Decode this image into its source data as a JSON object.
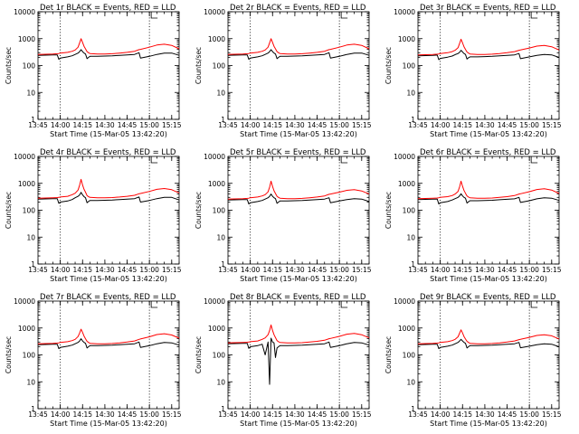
{
  "page": {
    "background": "#ffffff"
  },
  "chart_data": {
    "type": "line",
    "layout": "3x3",
    "y_scale": "log",
    "ylim": [
      1,
      10000
    ],
    "xlim": [
      "13:45",
      "15:20"
    ],
    "ylabel": "Counts/sec",
    "xlabel": "Start Time (15-Mar-05 13:42:20)",
    "x_tick_labels": [
      "13:45",
      "14:00",
      "14:15",
      "14:30",
      "14:45",
      "15:00",
      "15:15"
    ],
    "y_tick_labels": [
      "1",
      "10",
      "100",
      "1000",
      "10000"
    ],
    "vertical_markers": [
      "14:00",
      "15:00"
    ],
    "time_points": [
      "13:45",
      "13:55",
      "13:58",
      "13:59",
      "14:00",
      "14:05",
      "14:08",
      "14:10",
      "14:12",
      "14:13",
      "14:14",
      "14:15",
      "14:16",
      "14:17",
      "14:18",
      "14:19",
      "14:20",
      "14:25",
      "14:30",
      "14:35",
      "14:40",
      "14:45",
      "14:50",
      "14:53",
      "14:54",
      "15:00",
      "15:05",
      "15:10",
      "15:15",
      "15:20"
    ],
    "series": [
      {
        "key": "events",
        "color": "#000000"
      },
      {
        "key": "lld",
        "color": "#ff0000"
      }
    ],
    "panels": [
      {
        "title": "Det 1r BLACK = Events, RED = LLD",
        "events": [
          240,
          250,
          250,
          170,
          190,
          210,
          230,
          260,
          290,
          330,
          390,
          330,
          290,
          270,
          180,
          200,
          220,
          220,
          225,
          230,
          240,
          250,
          260,
          300,
          190,
          220,
          260,
          290,
          290,
          240
        ],
        "lld": [
          260,
          270,
          275,
          280,
          290,
          310,
          340,
          380,
          480,
          700,
          1000,
          720,
          520,
          420,
          330,
          300,
          280,
          270,
          270,
          275,
          290,
          310,
          340,
          390,
          400,
          480,
          580,
          620,
          560,
          420
        ]
      },
      {
        "title": "Det 2r BLACK = Events, RED = LLD",
        "events": [
          240,
          250,
          250,
          170,
          190,
          210,
          230,
          260,
          290,
          330,
          390,
          330,
          290,
          270,
          180,
          200,
          220,
          220,
          225,
          230,
          240,
          250,
          260,
          300,
          190,
          220,
          260,
          290,
          290,
          240
        ],
        "lld": [
          260,
          270,
          275,
          280,
          290,
          310,
          340,
          380,
          480,
          700,
          1000,
          720,
          520,
          420,
          330,
          300,
          280,
          270,
          270,
          275,
          290,
          310,
          340,
          390,
          400,
          480,
          580,
          620,
          560,
          420
        ]
      },
      {
        "title": "Det 3r BLACK = Events, RED = LLD",
        "events": [
          230,
          240,
          245,
          165,
          185,
          205,
          225,
          255,
          280,
          310,
          370,
          320,
          280,
          260,
          175,
          195,
          210,
          210,
          215,
          220,
          230,
          240,
          250,
          280,
          180,
          210,
          240,
          260,
          250,
          200
        ],
        "lld": [
          250,
          260,
          265,
          270,
          280,
          300,
          330,
          370,
          460,
          660,
          950,
          690,
          500,
          400,
          320,
          290,
          270,
          260,
          260,
          265,
          280,
          300,
          330,
          370,
          380,
          450,
          530,
          560,
          500,
          380
        ]
      },
      {
        "title": "Det 4r BLACK = Events, RED = LLD",
        "events": [
          260,
          270,
          270,
          180,
          200,
          220,
          250,
          290,
          330,
          370,
          460,
          370,
          320,
          290,
          190,
          210,
          230,
          230,
          235,
          240,
          250,
          260,
          270,
          310,
          200,
          230,
          270,
          300,
          300,
          240
        ],
        "lld": [
          280,
          290,
          295,
          300,
          310,
          330,
          380,
          430,
          560,
          850,
          1400,
          860,
          600,
          470,
          350,
          320,
          300,
          290,
          290,
          295,
          310,
          330,
          360,
          410,
          420,
          500,
          600,
          640,
          580,
          440
        ]
      },
      {
        "title": "Det 5r BLACK = Events, RED = LLD",
        "events": [
          240,
          250,
          250,
          170,
          190,
          210,
          230,
          260,
          290,
          330,
          400,
          330,
          290,
          270,
          180,
          200,
          220,
          220,
          225,
          230,
          240,
          250,
          260,
          290,
          190,
          220,
          250,
          270,
          260,
          210
        ],
        "lld": [
          260,
          270,
          275,
          280,
          290,
          310,
          340,
          380,
          480,
          720,
          1200,
          760,
          530,
          420,
          330,
          300,
          280,
          270,
          270,
          275,
          290,
          310,
          340,
          390,
          400,
          470,
          550,
          580,
          520,
          400
        ]
      },
      {
        "title": "Det 6r BLACK = Events, RED = LLD",
        "events": [
          250,
          260,
          260,
          170,
          190,
          210,
          240,
          270,
          300,
          340,
          410,
          340,
          300,
          280,
          185,
          205,
          225,
          225,
          230,
          235,
          245,
          255,
          265,
          300,
          195,
          225,
          265,
          290,
          280,
          230
        ],
        "lld": [
          270,
          280,
          285,
          290,
          300,
          320,
          350,
          400,
          500,
          740,
          1200,
          770,
          540,
          430,
          340,
          310,
          290,
          280,
          280,
          285,
          300,
          320,
          350,
          400,
          410,
          490,
          590,
          630,
          560,
          420
        ]
      },
      {
        "title": "Det 7r BLACK = Events, RED = LLD",
        "events": [
          240,
          250,
          250,
          170,
          190,
          210,
          230,
          260,
          290,
          330,
          400,
          330,
          290,
          270,
          180,
          200,
          220,
          220,
          225,
          230,
          240,
          250,
          260,
          300,
          190,
          220,
          260,
          290,
          280,
          230
        ],
        "lld": [
          260,
          270,
          275,
          280,
          290,
          310,
          340,
          380,
          480,
          650,
          900,
          680,
          500,
          400,
          320,
          290,
          270,
          260,
          260,
          265,
          280,
          300,
          330,
          380,
          390,
          470,
          570,
          610,
          550,
          420
        ]
      },
      {
        "title": "Det 8r BLACK = Events, RED = LLD",
        "events": [
          260,
          270,
          270,
          175,
          200,
          220,
          250,
          100,
          300,
          8,
          420,
          300,
          280,
          80,
          180,
          200,
          220,
          220,
          225,
          230,
          240,
          250,
          260,
          300,
          190,
          220,
          260,
          290,
          280,
          230
        ],
        "lld": [
          280,
          290,
          295,
          300,
          310,
          330,
          380,
          430,
          560,
          800,
          1300,
          800,
          560,
          440,
          340,
          310,
          290,
          280,
          280,
          285,
          300,
          320,
          350,
          400,
          410,
          490,
          590,
          630,
          560,
          430
        ]
      },
      {
        "title": "Det 9r BLACK = Events, RED = LLD",
        "events": [
          240,
          250,
          250,
          170,
          190,
          210,
          230,
          260,
          290,
          330,
          380,
          330,
          290,
          270,
          180,
          200,
          220,
          220,
          225,
          230,
          240,
          250,
          260,
          290,
          185,
          210,
          240,
          260,
          250,
          200
        ],
        "lld": [
          260,
          270,
          275,
          280,
          290,
          310,
          340,
          380,
          470,
          640,
          850,
          650,
          480,
          390,
          320,
          290,
          270,
          260,
          260,
          265,
          280,
          300,
          330,
          370,
          380,
          450,
          530,
          560,
          510,
          390
        ]
      }
    ]
  }
}
